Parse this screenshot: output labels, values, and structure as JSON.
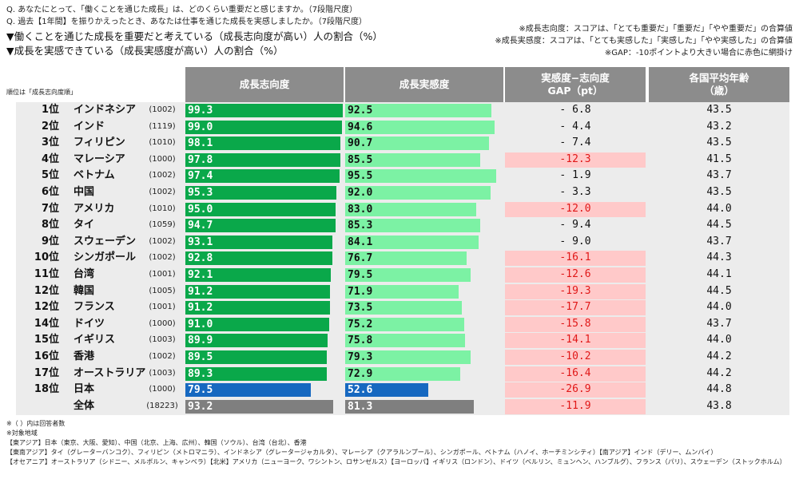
{
  "questions": [
    "Q. あなたにとって、「働くことを通じた成長」は、どのくらい重要だと感じますか。（7段階尺度）",
    "Q. 過去【1年間】を振りかえったとき、あなたは仕事を通じた成長を実感しましたか。（7段階尺度）"
  ],
  "subtitles": [
    "▼働くことを通じた成長を重要だと考えている（成長志向度が高い）人の割合（%）",
    "▼成長を実感できている（成長実感度が高い）人の割合（%）"
  ],
  "notes": [
    "※成長志向度：スコアは、「とても重要だ」「重要だ」「やや重要だ」の合算値",
    "※成長実感度：スコアは、「とても実感した」「実感した」「やや実感した」の合算値",
    "※GAP：-10ポイントより大きい場合に赤色に網掛け"
  ],
  "rank_order_note": "順位は「成長志向度順」",
  "headers": {
    "col1": "成長志向度",
    "col2": "成長実感度",
    "col3_line1": "実感度−志向度",
    "col3_line2": "GAP（pt）",
    "col4_line1": "各国平均年齢",
    "col4_line2": "（歳）"
  },
  "colors": {
    "orientation_bar": "#0aa84a",
    "realization_bar": "#7cf2a4",
    "japan_orientation_bar": "#1668c0",
    "japan_realization_bar": "#1668c0",
    "total_bar": "#7f7f7f",
    "gap_highlight": "#ffc9c9",
    "header_bg": "#8c8c8c"
  },
  "chart_data": {
    "type": "table",
    "columns": [
      "順位",
      "国・地域",
      "回答者数",
      "成長志向度",
      "成長実感度",
      "実感度−志向度 GAP（pt）",
      "各国平均年齢（歳）"
    ],
    "rows": [
      {
        "rank": "1位",
        "country": "インドネシア",
        "n": "(1002)",
        "orientation": 99.3,
        "realization": 92.5,
        "gap": "- 6.8",
        "age": "43.5",
        "highlight": false,
        "style": "normal"
      },
      {
        "rank": "2位",
        "country": "インド",
        "n": "(1119)",
        "orientation": 99.0,
        "realization": 94.6,
        "gap": "- 4.4",
        "age": "43.2",
        "highlight": false,
        "style": "normal"
      },
      {
        "rank": "3位",
        "country": "フィリピン",
        "n": "(1010)",
        "orientation": 98.1,
        "realization": 90.7,
        "gap": "- 7.4",
        "age": "43.5",
        "highlight": false,
        "style": "normal"
      },
      {
        "rank": "4位",
        "country": "マレーシア",
        "n": "(1000)",
        "orientation": 97.8,
        "realization": 85.5,
        "gap": "-12.3",
        "age": "41.5",
        "highlight": true,
        "style": "normal"
      },
      {
        "rank": "5位",
        "country": "ベトナム",
        "n": "(1002)",
        "orientation": 97.4,
        "realization": 95.5,
        "gap": "- 1.9",
        "age": "43.7",
        "highlight": false,
        "style": "normal"
      },
      {
        "rank": "6位",
        "country": "中国",
        "n": "(1002)",
        "orientation": 95.3,
        "realization": 92.0,
        "gap": "- 3.3",
        "age": "43.5",
        "highlight": false,
        "style": "normal"
      },
      {
        "rank": "7位",
        "country": "アメリカ",
        "n": "(1010)",
        "orientation": 95.0,
        "realization": 83.0,
        "gap": "-12.0",
        "age": "44.0",
        "highlight": true,
        "style": "normal"
      },
      {
        "rank": "8位",
        "country": "タイ",
        "n": "(1059)",
        "orientation": 94.7,
        "realization": 85.3,
        "gap": "- 9.4",
        "age": "44.5",
        "highlight": false,
        "style": "normal"
      },
      {
        "rank": "9位",
        "country": "スウェーデン",
        "n": "(1002)",
        "orientation": 93.1,
        "realization": 84.1,
        "gap": "- 9.0",
        "age": "43.7",
        "highlight": false,
        "style": "normal"
      },
      {
        "rank": "10位",
        "country": "シンガポール",
        "n": "(1002)",
        "orientation": 92.8,
        "realization": 76.7,
        "gap": "-16.1",
        "age": "44.3",
        "highlight": true,
        "style": "normal"
      },
      {
        "rank": "11位",
        "country": "台湾",
        "n": "(1001)",
        "orientation": 92.1,
        "realization": 79.5,
        "gap": "-12.6",
        "age": "44.1",
        "highlight": true,
        "style": "normal"
      },
      {
        "rank": "12位",
        "country": "韓国",
        "n": "(1005)",
        "orientation": 91.2,
        "realization": 71.9,
        "gap": "-19.3",
        "age": "44.5",
        "highlight": true,
        "style": "normal"
      },
      {
        "rank": "12位",
        "country": "フランス",
        "n": "(1001)",
        "orientation": 91.2,
        "realization": 73.5,
        "gap": "-17.7",
        "age": "44.0",
        "highlight": true,
        "style": "normal"
      },
      {
        "rank": "14位",
        "country": "ドイツ",
        "n": "(1000)",
        "orientation": 91.0,
        "realization": 75.2,
        "gap": "-15.8",
        "age": "43.7",
        "highlight": true,
        "style": "normal"
      },
      {
        "rank": "15位",
        "country": "イギリス",
        "n": "(1003)",
        "orientation": 89.9,
        "realization": 75.8,
        "gap": "-14.1",
        "age": "44.0",
        "highlight": true,
        "style": "normal"
      },
      {
        "rank": "16位",
        "country": "香港",
        "n": "(1002)",
        "orientation": 89.5,
        "realization": 79.3,
        "gap": "-10.2",
        "age": "44.2",
        "highlight": true,
        "style": "normal"
      },
      {
        "rank": "17位",
        "country": "オーストラリア",
        "n": "(1003)",
        "orientation": 89.3,
        "realization": 72.9,
        "gap": "-16.4",
        "age": "44.2",
        "highlight": true,
        "style": "normal"
      },
      {
        "rank": "18位",
        "country": "日本",
        "n": "(1000)",
        "orientation": 79.5,
        "realization": 52.6,
        "gap": "-26.9",
        "age": "44.8",
        "highlight": true,
        "style": "japan"
      },
      {
        "rank": "",
        "country": "全体",
        "n": "(18223)",
        "orientation": 93.2,
        "realization": 81.3,
        "gap": "-11.9",
        "age": "43.8",
        "highlight": true,
        "style": "total"
      }
    ]
  },
  "footnotes": [
    "※（ ）内は回答者数",
    "※対象地域",
    "【東アジア】日本（東京、大阪、愛知）、中国（北京、上海、広州）、韓国（ソウル）、台湾（台北）、香港",
    "【東南アジア】タイ（グレーターバンコク）、フィリピン（メトロマニラ）、インドネシア（グレータージャカルタ）、マレーシア（クアラルンプール）、シンガポール、ベトナム（ハノイ、ホーチミンシティ）【南アジア】インド（デリー、ムンバイ）",
    "【オセアニア】オーストラリア（シドニー、メルボルン、キャンベラ）【北米】アメリカ（ニューヨーク、ワシントン、ロサンゼルス）【ヨーロッパ】イギリス（ロンドン）、ドイツ（ベルリン、ミュンヘン、ハンブルグ）、フランス（パリ）、スウェーデン（ストックホルム）"
  ]
}
